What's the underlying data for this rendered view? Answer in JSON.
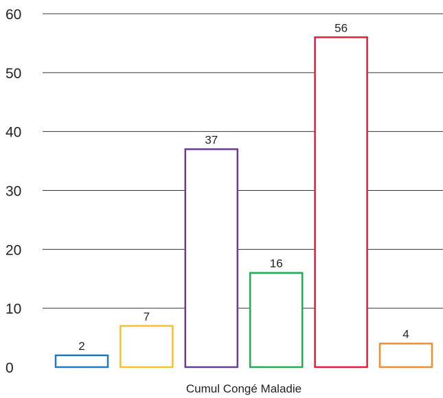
{
  "chart_data": {
    "type": "bar",
    "xlabel": "Cumul Congé Maladie",
    "ylim": [
      0,
      60
    ],
    "yticks": [
      0,
      10,
      20,
      30,
      40,
      50,
      60
    ],
    "grid": true,
    "values": [
      2,
      7,
      37,
      16,
      56,
      4
    ],
    "colors": [
      "#1f78c1",
      "#f2c229",
      "#6a3a96",
      "#21ad4f",
      "#e11d38",
      "#f08c2c"
    ]
  }
}
